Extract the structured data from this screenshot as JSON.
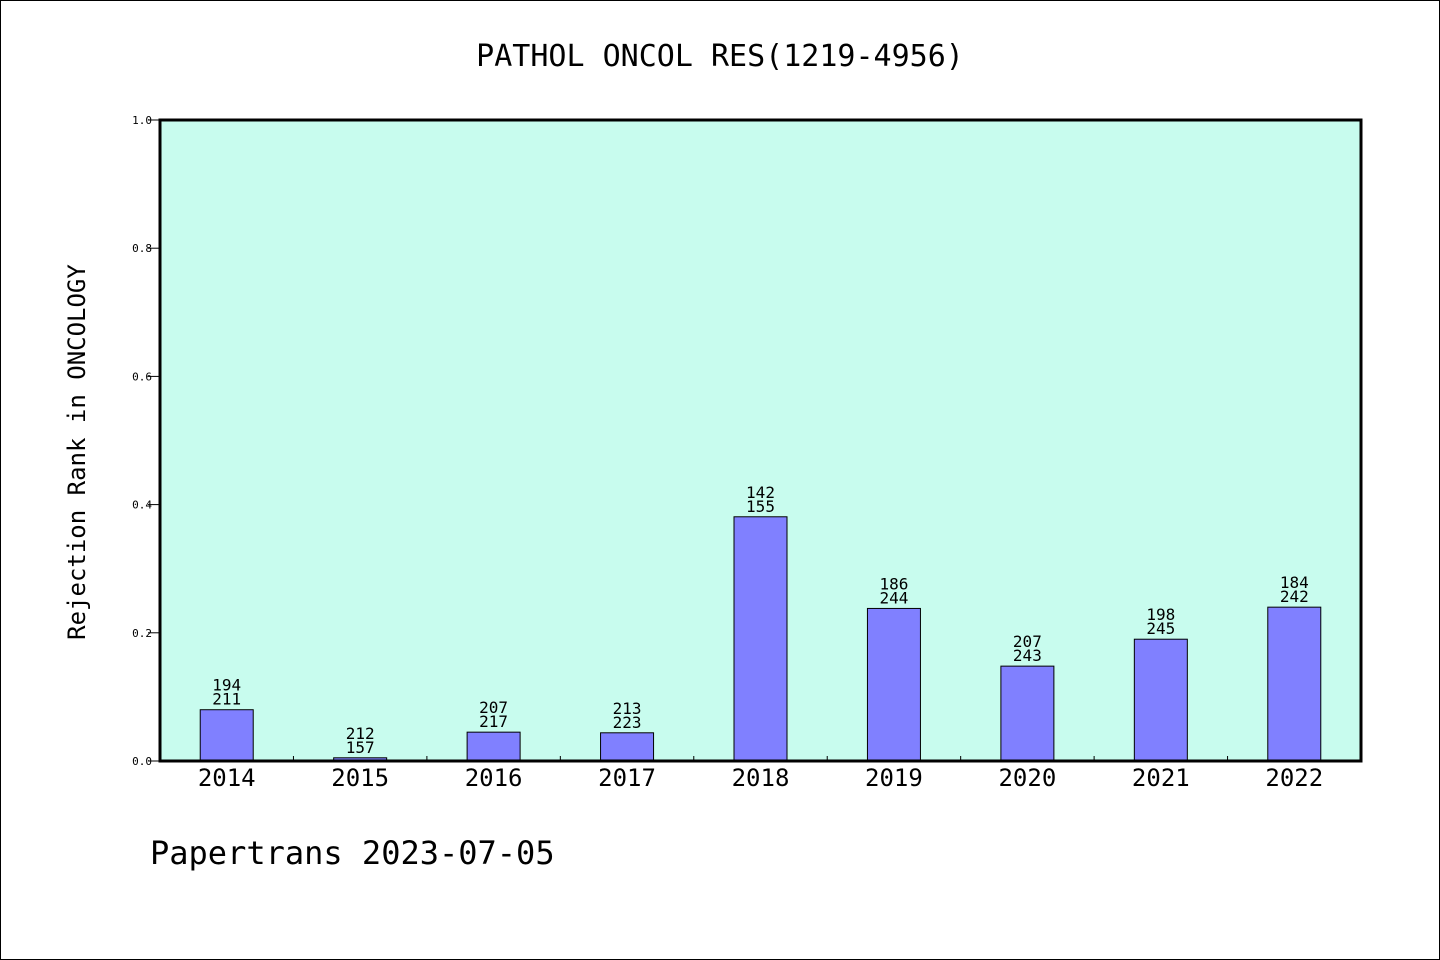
{
  "chart_data": {
    "type": "bar",
    "title": "PATHOL ONCOL RES(1219-4956)",
    "ylabel": "Rejection Rank in ONCOLOGY",
    "xlabel": "",
    "ylim": [
      0,
      1.0
    ],
    "yticks": [
      "0.0",
      "0.2",
      "0.4",
      "0.6",
      "0.8",
      "1.0"
    ],
    "categories": [
      "2014",
      "2015",
      "2016",
      "2017",
      "2018",
      "2019",
      "2020",
      "2021",
      "2022"
    ],
    "values": [
      0.08,
      0.005,
      0.045,
      0.044,
      0.381,
      0.238,
      0.148,
      0.19,
      0.24
    ],
    "labels_top": [
      "194",
      "212",
      "207",
      "213",
      "142",
      "186",
      "207",
      "198",
      "184"
    ],
    "labels_bottom": [
      "211",
      "157",
      "217",
      "223",
      "155",
      "244",
      "243",
      "245",
      "242"
    ],
    "grid": false,
    "colors": {
      "plot_background": "#c8fcee",
      "bar_fill": "#8080ff",
      "bar_stroke": "#000000"
    }
  },
  "footer": "Papertrans 2023-07-05"
}
